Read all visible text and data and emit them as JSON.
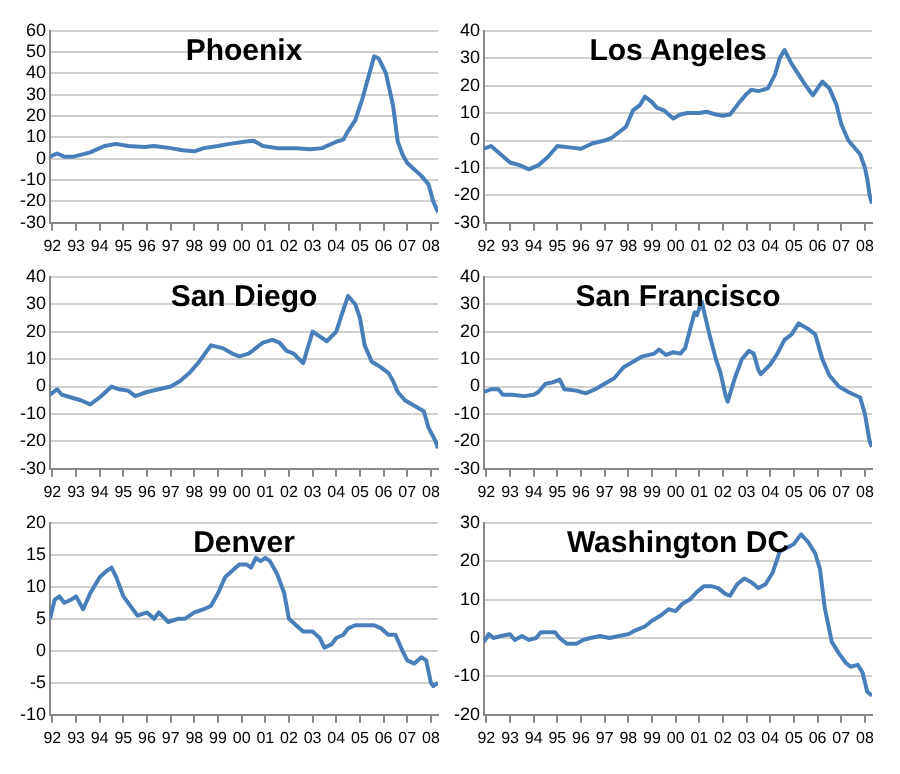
{
  "chart_data": [
    {
      "type": "line",
      "title": "Phoenix",
      "color": "#4a7ebb",
      "grid": "y",
      "marker": "none",
      "xlim": [
        1991.9,
        2008.3
      ],
      "xticks": [
        {
          "value": 1992,
          "label": "92"
        },
        {
          "value": 1993,
          "label": "93"
        },
        {
          "value": 1994,
          "label": "94"
        },
        {
          "value": 1995,
          "label": "95"
        },
        {
          "value": 1996,
          "label": "96"
        },
        {
          "value": 1997,
          "label": "97"
        },
        {
          "value": 1998,
          "label": "98"
        },
        {
          "value": 1999,
          "label": "99"
        },
        {
          "value": 2000,
          "label": "00"
        },
        {
          "value": 2001,
          "label": "01"
        },
        {
          "value": 2002,
          "label": "02"
        },
        {
          "value": 2003,
          "label": "03"
        },
        {
          "value": 2004,
          "label": "04"
        },
        {
          "value": 2005,
          "label": "05"
        },
        {
          "value": 2006,
          "label": "06"
        },
        {
          "value": 2007,
          "label": "07"
        },
        {
          "value": 2008,
          "label": "08"
        }
      ],
      "ylim": [
        -30,
        60
      ],
      "yticks": [
        -30,
        -20,
        -10,
        0,
        10,
        20,
        30,
        40,
        50,
        60
      ],
      "x": [
        1991.9,
        1992.2,
        1992.5,
        1992.9,
        1993.6,
        1994.2,
        1994.7,
        1995.2,
        1995.9,
        1996.3,
        1997.0,
        1997.5,
        1998.0,
        1998.4,
        1999.0,
        1999.5,
        2000.1,
        2000.5,
        2000.9,
        2001.5,
        2002.3,
        2002.9,
        2003.4,
        2004.0,
        2004.3,
        2004.5,
        2004.8,
        2005.1,
        2005.4,
        2005.6,
        2005.8,
        2006.1,
        2006.4,
        2006.6,
        2006.8,
        2007.0,
        2007.3,
        2007.6,
        2007.9,
        2008.1,
        2008.3
      ],
      "values": [
        1,
        2.5,
        1,
        1,
        3,
        6,
        7,
        6,
        5.5,
        6,
        5,
        4,
        3.5,
        5,
        6,
        7,
        8,
        8.5,
        6,
        5,
        5,
        4.5,
        5,
        8,
        9,
        13,
        18,
        28,
        40,
        48,
        47,
        40,
        25,
        8,
        2,
        -2,
        -5,
        -8,
        -12,
        -20,
        -25
      ]
    },
    {
      "type": "line",
      "title": "Los Angeles",
      "color": "#4a7ebb",
      "grid": "y",
      "marker": "none",
      "xlim": [
        1991.9,
        2008.3
      ],
      "xticks": [
        {
          "value": 1992,
          "label": "92"
        },
        {
          "value": 1993,
          "label": "93"
        },
        {
          "value": 1994,
          "label": "94"
        },
        {
          "value": 1995,
          "label": "95"
        },
        {
          "value": 1996,
          "label": "96"
        },
        {
          "value": 1997,
          "label": "97"
        },
        {
          "value": 1998,
          "label": "98"
        },
        {
          "value": 1999,
          "label": "99"
        },
        {
          "value": 2000,
          "label": "00"
        },
        {
          "value": 2001,
          "label": "01"
        },
        {
          "value": 2002,
          "label": "02"
        },
        {
          "value": 2003,
          "label": "03"
        },
        {
          "value": 2004,
          "label": "04"
        },
        {
          "value": 2005,
          "label": "05"
        },
        {
          "value": 2006,
          "label": "06"
        },
        {
          "value": 2007,
          "label": "07"
        },
        {
          "value": 2008,
          "label": "08"
        }
      ],
      "ylim": [
        -30,
        40
      ],
      "yticks": [
        -30,
        -20,
        -10,
        0,
        10,
        20,
        30,
        40
      ],
      "x": [
        1991.9,
        1992.2,
        1992.6,
        1993.0,
        1993.4,
        1993.8,
        1994.2,
        1994.6,
        1995.0,
        1995.5,
        1996.0,
        1996.5,
        1997.0,
        1997.3,
        1997.9,
        1998.2,
        1998.5,
        1998.7,
        1999.0,
        1999.2,
        1999.5,
        1999.9,
        2000.2,
        2000.5,
        2001.0,
        2001.3,
        2001.7,
        2002.0,
        2002.3,
        2002.7,
        2003.0,
        2003.2,
        2003.5,
        2003.9,
        2004.2,
        2004.4,
        2004.6,
        2004.9,
        2005.2,
        2005.5,
        2005.8,
        2006.0,
        2006.2,
        2006.5,
        2006.8,
        2007.0,
        2007.3,
        2007.6,
        2007.8,
        2008.0,
        2008.1,
        2008.2,
        2008.3
      ],
      "values": [
        -3,
        -2,
        -5,
        -8,
        -9,
        -10.5,
        -9,
        -6,
        -2,
        -2.5,
        -3,
        -1,
        0,
        1,
        5,
        11,
        13,
        16,
        14,
        12,
        11,
        8,
        9.5,
        10,
        10,
        10.5,
        9.5,
        9,
        9.5,
        14,
        17,
        18.5,
        18,
        19,
        24,
        30,
        33,
        28,
        24,
        20,
        16.5,
        19,
        21.5,
        19,
        13,
        6,
        0,
        -3,
        -5,
        -10,
        -14,
        -20,
        -23
      ]
    },
    {
      "type": "line",
      "title": "San Diego",
      "color": "#4a7ebb",
      "grid": "y",
      "marker": "none",
      "xlim": [
        1991.9,
        2008.3
      ],
      "xticks": [
        {
          "value": 1992,
          "label": "92"
        },
        {
          "value": 1993,
          "label": "93"
        },
        {
          "value": 1994,
          "label": "94"
        },
        {
          "value": 1995,
          "label": "95"
        },
        {
          "value": 1996,
          "label": "96"
        },
        {
          "value": 1997,
          "label": "97"
        },
        {
          "value": 1998,
          "label": "98"
        },
        {
          "value": 1999,
          "label": "99"
        },
        {
          "value": 2000,
          "label": "00"
        },
        {
          "value": 2001,
          "label": "01"
        },
        {
          "value": 2002,
          "label": "02"
        },
        {
          "value": 2003,
          "label": "03"
        },
        {
          "value": 2004,
          "label": "04"
        },
        {
          "value": 2005,
          "label": "05"
        },
        {
          "value": 2006,
          "label": "06"
        },
        {
          "value": 2007,
          "label": "07"
        },
        {
          "value": 2008,
          "label": "08"
        }
      ],
      "ylim": [
        -30,
        40
      ],
      "yticks": [
        -30,
        -20,
        -10,
        0,
        10,
        20,
        30,
        40
      ],
      "x": [
        1991.9,
        1992.2,
        1992.4,
        1992.8,
        1993.2,
        1993.6,
        1994.0,
        1994.5,
        1994.8,
        1995.2,
        1995.5,
        1996.0,
        1996.5,
        1997.0,
        1997.4,
        1997.8,
        1998.2,
        1998.7,
        1999.2,
        1999.6,
        1999.9,
        2000.3,
        2000.6,
        2000.9,
        2001.3,
        2001.6,
        2001.9,
        2002.2,
        2002.6,
        2003.0,
        2003.6,
        2004.0,
        2004.3,
        2004.5,
        2004.8,
        2005.0,
        2005.2,
        2005.5,
        2005.8,
        2006.2,
        2006.4,
        2006.6,
        2006.9,
        2007.3,
        2007.7,
        2007.9,
        2008.2,
        2008.3
      ],
      "values": [
        -3,
        -1,
        -3,
        -4,
        -5,
        -6.5,
        -4,
        0,
        -1,
        -1.5,
        -3.5,
        -2,
        -1,
        0,
        2,
        5,
        9,
        15,
        14,
        12,
        11,
        12,
        14,
        16,
        17,
        16,
        13,
        12,
        8.5,
        20,
        16.5,
        20,
        28,
        33,
        30,
        25,
        15,
        9,
        7.5,
        5,
        2,
        -2,
        -5,
        -7,
        -9,
        -15,
        -20,
        -22.5
      ]
    },
    {
      "type": "line",
      "title": "San Francisco",
      "color": "#4a7ebb",
      "grid": "y",
      "marker": "none",
      "xlim": [
        1991.9,
        2008.3
      ],
      "xticks": [
        {
          "value": 1992,
          "label": "92"
        },
        {
          "value": 1993,
          "label": "93"
        },
        {
          "value": 1994,
          "label": "94"
        },
        {
          "value": 1995,
          "label": "95"
        },
        {
          "value": 1996,
          "label": "96"
        },
        {
          "value": 1997,
          "label": "97"
        },
        {
          "value": 1998,
          "label": "98"
        },
        {
          "value": 1999,
          "label": "99"
        },
        {
          "value": 2000,
          "label": "00"
        },
        {
          "value": 2001,
          "label": "01"
        },
        {
          "value": 2002,
          "label": "02"
        },
        {
          "value": 2003,
          "label": "03"
        },
        {
          "value": 2004,
          "label": "04"
        },
        {
          "value": 2005,
          "label": "05"
        },
        {
          "value": 2006,
          "label": "06"
        },
        {
          "value": 2007,
          "label": "07"
        },
        {
          "value": 2008,
          "label": "08"
        }
      ],
      "ylim": [
        -30,
        40
      ],
      "yticks": [
        -30,
        -20,
        -10,
        0,
        10,
        20,
        30,
        40
      ],
      "x": [
        1991.9,
        1992.2,
        1992.5,
        1992.7,
        1993.1,
        1993.6,
        1994.0,
        1994.2,
        1994.5,
        1994.8,
        1995.1,
        1995.3,
        1995.8,
        1996.2,
        1996.6,
        1997.0,
        1997.4,
        1997.8,
        1998.2,
        1998.6,
        1999.1,
        1999.3,
        1999.6,
        1999.9,
        2000.2,
        2000.4,
        2000.8,
        2000.9,
        2001.1,
        2001.4,
        2001.7,
        2001.9,
        2002.1,
        2002.2,
        2002.5,
        2002.8,
        2003.1,
        2003.3,
        2003.5,
        2003.6,
        2004.0,
        2004.3,
        2004.6,
        2004.9,
        2005.2,
        2005.6,
        2005.9,
        2006.2,
        2006.5,
        2006.9,
        2007.3,
        2007.8,
        2008.0,
        2008.2,
        2008.3
      ],
      "values": [
        -2,
        -1,
        -1,
        -3,
        -3,
        -3.5,
        -3,
        -2,
        1,
        1.5,
        2.5,
        -1,
        -1.5,
        -2.5,
        -1,
        1,
        3,
        7,
        9,
        11,
        12,
        13.5,
        11.5,
        12.5,
        12,
        14,
        27,
        26,
        31,
        20,
        10,
        5,
        -3,
        -5.5,
        3,
        10,
        13,
        12,
        6,
        4.5,
        8,
        12,
        17,
        19,
        23,
        21,
        19,
        10,
        4,
        0,
        -2,
        -4,
        -10,
        -20,
        -22
      ]
    },
    {
      "type": "line",
      "title": "Denver",
      "color": "#4a7ebb",
      "grid": "y",
      "marker": "none",
      "xlim": [
        1991.9,
        2008.3
      ],
      "xticks": [
        {
          "value": 1992,
          "label": "92"
        },
        {
          "value": 1993,
          "label": "93"
        },
        {
          "value": 1994,
          "label": "94"
        },
        {
          "value": 1995,
          "label": "95"
        },
        {
          "value": 1996,
          "label": "96"
        },
        {
          "value": 1997,
          "label": "97"
        },
        {
          "value": 1998,
          "label": "98"
        },
        {
          "value": 1999,
          "label": "99"
        },
        {
          "value": 2000,
          "label": "00"
        },
        {
          "value": 2001,
          "label": "01"
        },
        {
          "value": 2002,
          "label": "02"
        },
        {
          "value": 2003,
          "label": "03"
        },
        {
          "value": 2004,
          "label": "04"
        },
        {
          "value": 2005,
          "label": "05"
        },
        {
          "value": 2006,
          "label": "06"
        },
        {
          "value": 2007,
          "label": "07"
        },
        {
          "value": 2008,
          "label": "08"
        }
      ],
      "ylim": [
        -10,
        20
      ],
      "yticks": [
        -10,
        -5,
        0,
        5,
        10,
        15,
        20
      ],
      "x": [
        1991.9,
        1992.1,
        1992.3,
        1992.5,
        1992.8,
        1993.0,
        1993.3,
        1993.6,
        1994.0,
        1994.3,
        1994.5,
        1994.7,
        1995.0,
        1995.3,
        1995.6,
        1996.0,
        1996.3,
        1996.5,
        1996.9,
        1997.3,
        1997.6,
        1998.0,
        1998.4,
        1998.7,
        1999.0,
        1999.3,
        1999.6,
        1999.9,
        2000.2,
        2000.4,
        2000.6,
        2000.8,
        2001.0,
        2001.2,
        2001.5,
        2001.8,
        2002.0,
        2002.3,
        2002.6,
        2003.0,
        2003.3,
        2003.5,
        2003.8,
        2004.0,
        2004.3,
        2004.5,
        2004.8,
        2005.2,
        2005.6,
        2005.9,
        2006.2,
        2006.5,
        2006.8,
        2007.0,
        2007.3,
        2007.6,
        2007.8,
        2008.0,
        2008.1,
        2008.3
      ],
      "values": [
        5,
        8,
        8.5,
        7.5,
        8,
        8.5,
        6.5,
        9,
        11.5,
        12.5,
        13,
        11.5,
        8.5,
        7,
        5.5,
        6,
        5,
        6,
        4.5,
        5,
        5,
        6,
        6.5,
        7,
        9,
        11.5,
        12.5,
        13.5,
        13.5,
        13,
        14.5,
        14,
        14.5,
        14,
        12,
        9,
        5,
        4,
        3,
        3,
        2,
        0.5,
        1,
        2,
        2.5,
        3.5,
        4,
        4,
        4,
        3.5,
        2.5,
        2.5,
        0,
        -1.5,
        -2,
        -1,
        -1.5,
        -5,
        -5.5,
        -5
      ]
    },
    {
      "type": "line",
      "title": "Washington DC",
      "color": "#4a7ebb",
      "grid": "y",
      "marker": "none",
      "xlim": [
        1991.9,
        2008.3
      ],
      "xticks": [
        {
          "value": 1992,
          "label": "92"
        },
        {
          "value": 1993,
          "label": "93"
        },
        {
          "value": 1994,
          "label": "94"
        },
        {
          "value": 1995,
          "label": "95"
        },
        {
          "value": 1996,
          "label": "96"
        },
        {
          "value": 1997,
          "label": "97"
        },
        {
          "value": 1998,
          "label": "98"
        },
        {
          "value": 1999,
          "label": "99"
        },
        {
          "value": 2000,
          "label": "00"
        },
        {
          "value": 2001,
          "label": "01"
        },
        {
          "value": 2002,
          "label": "02"
        },
        {
          "value": 2003,
          "label": "03"
        },
        {
          "value": 2004,
          "label": "04"
        },
        {
          "value": 2005,
          "label": "05"
        },
        {
          "value": 2006,
          "label": "06"
        },
        {
          "value": 2007,
          "label": "07"
        },
        {
          "value": 2008,
          "label": "08"
        }
      ],
      "ylim": [
        -20,
        30
      ],
      "yticks": [
        -20,
        -10,
        0,
        10,
        20,
        30
      ],
      "x": [
        1991.9,
        1992.1,
        1992.3,
        1992.6,
        1993.0,
        1993.2,
        1993.5,
        1993.8,
        1994.1,
        1994.3,
        1994.6,
        1994.9,
        1995.1,
        1995.4,
        1995.8,
        1996.1,
        1996.4,
        1996.8,
        1997.2,
        1997.6,
        1998.0,
        1998.3,
        1998.7,
        1999.0,
        1999.4,
        1999.7,
        2000.0,
        2000.3,
        2000.6,
        2000.9,
        2001.2,
        2001.5,
        2001.8,
        2002.1,
        2002.3,
        2002.6,
        2002.9,
        2003.2,
        2003.5,
        2003.8,
        2004.1,
        2004.4,
        2004.7,
        2005.0,
        2005.3,
        2005.6,
        2005.9,
        2006.1,
        2006.3,
        2006.6,
        2006.9,
        2007.2,
        2007.4,
        2007.7,
        2007.9,
        2008.1,
        2008.3
      ],
      "values": [
        -1,
        1,
        0,
        0.5,
        1,
        -0.5,
        0.5,
        -0.5,
        0,
        1.5,
        1.5,
        1.5,
        0,
        -1.5,
        -1.5,
        -0.5,
        0,
        0.5,
        0,
        0.5,
        1,
        2,
        3,
        4.5,
        6,
        7.5,
        7,
        9,
        10,
        12,
        13.5,
        13.5,
        13,
        11.5,
        11,
        14,
        15.5,
        14.5,
        13,
        14,
        17,
        22.5,
        23.5,
        24.5,
        27,
        25,
        22,
        18,
        8,
        -1,
        -4,
        -6.5,
        -7.5,
        -7,
        -9,
        -14,
        -15
      ]
    }
  ]
}
